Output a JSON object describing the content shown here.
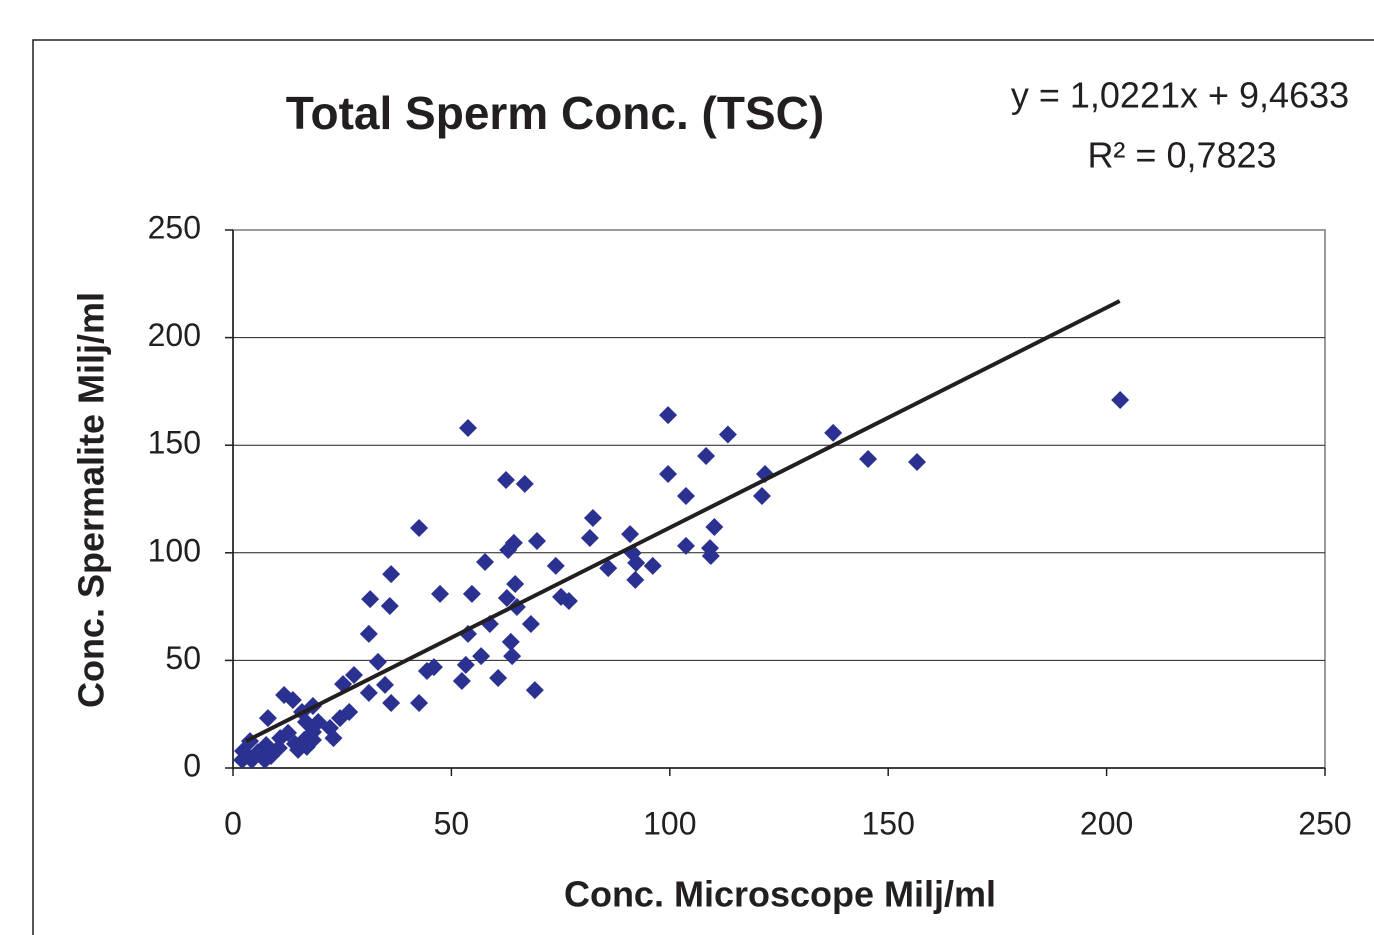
{
  "chart_data": {
    "type": "scatter",
    "title": "Total Sperm Conc. (TSC)",
    "annotations": [
      "y = 1,0221x + 9,4633",
      "R² = 0,7823"
    ],
    "xlabel": "Conc. Microscope Milj/ml",
    "ylabel": "Conc. Spermalite Milj/ml",
    "xlim": [
      0,
      250
    ],
    "xticks": [
      0,
      50,
      100,
      150,
      200,
      250
    ],
    "ylim": [
      0,
      250
    ],
    "yticks": [
      0,
      50,
      100,
      150,
      200,
      250
    ],
    "grid": true,
    "color": "#2b3190",
    "trendline": {
      "color": "#231f20",
      "x": [
        3,
        203
      ],
      "y": [
        12.5,
        217
      ]
    },
    "x": [
      203.1,
      99.6,
      53.8,
      113.3,
      137.4,
      145.4,
      156.6,
      108.3,
      99.6,
      121.8,
      103.7,
      121.1,
      62.5,
      66.8,
      42.6,
      82.4,
      110.2,
      90.9,
      81.7,
      69.6,
      64.3,
      63,
      103.7,
      109.2,
      109.4,
      91.5,
      92.3,
      96.1,
      73.9,
      85.9,
      92.1,
      57.7,
      36.2,
      47.4,
      54.7,
      31.4,
      35.9,
      64.6,
      62.7,
      65,
      75.1,
      76.9,
      58.8,
      68.2,
      53.8,
      31.1,
      63.6,
      56.8,
      63.9,
      53.3,
      33.2,
      46,
      44.4,
      60.7,
      52.4,
      69.1,
      27.7,
      34.8,
      31.1,
      25.2,
      36.2,
      42.6,
      26.6,
      24.5,
      22.2,
      23,
      18.3,
      15.8,
      11.7,
      13.7,
      16.7,
      18.3,
      18.3,
      16.9,
      14.2,
      10.8,
      8,
      7.6,
      5.7,
      3.9,
      2.3,
      2.1,
      4.3,
      7.3,
      8.7,
      10.5,
      12.6,
      19.5,
      16.3,
      14.9
    ],
    "values": [
      171,
      164,
      158,
      155,
      155.7,
      143.6,
      142.2,
      145,
      136.6,
      136.6,
      126.4,
      126.4,
      133.8,
      132,
      111.5,
      116.2,
      112,
      108.7,
      106.9,
      105.5,
      104.6,
      101.3,
      103.2,
      102.2,
      98.5,
      99.9,
      95.3,
      93.9,
      93.9,
      92.9,
      87.4,
      95.7,
      90.1,
      80.9,
      80.9,
      78.5,
      75.3,
      85.5,
      79,
      74.8,
      79.5,
      77.6,
      66.9,
      66.9,
      62.3,
      62.3,
      58.6,
      52,
      52,
      47.9,
      49.3,
      46.9,
      45.1,
      41.8,
      40.4,
      36.2,
      43.2,
      38.6,
      34.9,
      39,
      30.2,
      30.2,
      26,
      23.2,
      18.6,
      13.9,
      28.8,
      26,
      33.9,
      31.6,
      21.4,
      16.7,
      13,
      9.8,
      11.2,
      13.9,
      23.2,
      10.7,
      7.4,
      12.5,
      7.9,
      3.7,
      3.7,
      3.7,
      5.6,
      9.3,
      16.3,
      21.4,
      13,
      8.4
    ]
  }
}
